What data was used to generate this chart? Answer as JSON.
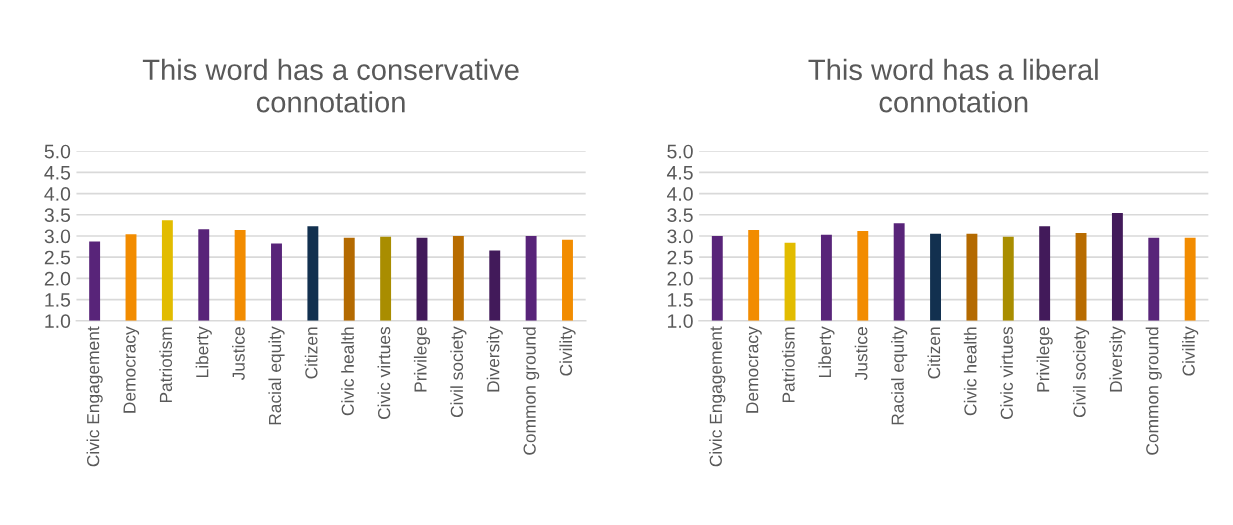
{
  "chart_data": [
    {
      "type": "bar",
      "title": "This word has a conservative\nconnotation",
      "categories": [
        "Civic Engagement",
        "Democracy",
        "Patriotism",
        "Liberty",
        "Justice",
        "Racial equity",
        "Citizen",
        "Civic health",
        "Civic virtues",
        "Privilege",
        "Civil society",
        "Diversity",
        "Common ground",
        "Civility"
      ],
      "values": [
        2.87,
        3.04,
        3.37,
        3.16,
        3.14,
        2.82,
        3.23,
        2.96,
        2.98,
        2.96,
        3.0,
        2.66,
        3.0,
        2.91
      ],
      "colors": [
        "#582479",
        "#f28c00",
        "#e2bc00",
        "#582479",
        "#f28c00",
        "#582479",
        "#12304f",
        "#b46a00",
        "#a98d00",
        "#421a5a",
        "#b86c00",
        "#421a5a",
        "#582479",
        "#f28c00"
      ],
      "ylim": [
        1,
        5
      ],
      "yticks": [
        {
          "value": 1,
          "label": "1.0"
        },
        {
          "value": 1.5,
          "label": "1.5"
        },
        {
          "value": 2,
          "label": "2.0"
        },
        {
          "value": 2.5,
          "label": "2.5"
        },
        {
          "value": 3,
          "label": "3.0"
        },
        {
          "value": 3.5,
          "label": "3.5"
        },
        {
          "value": 4,
          "label": "4.0"
        },
        {
          "value": 4.5,
          "label": "4.5"
        },
        {
          "value": 5,
          "label": "5.0"
        }
      ],
      "grid": "y",
      "legend": false
    },
    {
      "type": "bar",
      "title": "This word has a liberal\nconnotation",
      "categories": [
        "Civic Engagement",
        "Democracy",
        "Patriotism",
        "Liberty",
        "Justice",
        "Racial equity",
        "Citizen",
        "Civic health",
        "Civic virtues",
        "Privilege",
        "Civil society",
        "Diversity",
        "Common ground",
        "Civility"
      ],
      "values": [
        3.0,
        3.14,
        2.84,
        3.03,
        3.12,
        3.3,
        3.05,
        3.05,
        2.98,
        3.23,
        3.07,
        3.54,
        2.96,
        2.96
      ],
      "colors": [
        "#582479",
        "#f28c00",
        "#e2bc00",
        "#582479",
        "#f28c00",
        "#582479",
        "#12304f",
        "#b46a00",
        "#a98d00",
        "#421a5a",
        "#b86c00",
        "#421a5a",
        "#582479",
        "#f28c00"
      ],
      "ylim": [
        1,
        5
      ],
      "yticks": [
        {
          "value": 1,
          "label": "1.0"
        },
        {
          "value": 1.5,
          "label": "1.5"
        },
        {
          "value": 2,
          "label": "2.0"
        },
        {
          "value": 2.5,
          "label": "2.5"
        },
        {
          "value": 3,
          "label": "3.0"
        },
        {
          "value": 3.5,
          "label": "3.5"
        },
        {
          "value": 4,
          "label": "4.0"
        },
        {
          "value": 4.5,
          "label": "4.5"
        },
        {
          "value": 5,
          "label": "5.0"
        }
      ],
      "grid": "y",
      "legend": false
    }
  ]
}
